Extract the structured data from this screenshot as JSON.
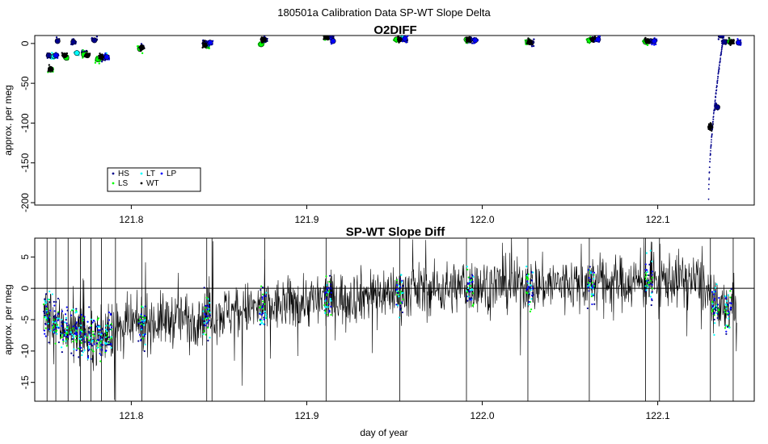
{
  "figure": {
    "title": "180501a   Calibration Data SP-WT Slope Delta",
    "xlabel": "day of year"
  },
  "chart_data": [
    {
      "type": "scatter",
      "title": "O2DIFF",
      "ylabel": "approx. per meg",
      "xlim": [
        121.745,
        122.155
      ],
      "ylim": [
        -203,
        10
      ],
      "xticks": [
        121.8,
        121.9,
        122.0,
        122.1
      ],
      "xtick_labels": [
        "121.8",
        "121.9",
        "122.0",
        "122.1"
      ],
      "yticks": [
        0,
        -50,
        -100,
        -150,
        -200
      ],
      "ytick_labels": [
        "0",
        "-50",
        "-100",
        "-150",
        "-200"
      ],
      "legend": {
        "placement": "bottom-left",
        "entries": [
          {
            "label": "HS",
            "color": "#00008b"
          },
          {
            "label": "LS",
            "color": "#00ff00"
          },
          {
            "label": "LT",
            "color": "#00ffff"
          },
          {
            "label": "WT",
            "color": "#000000"
          },
          {
            "label": "LP",
            "color": "#0000ff"
          }
        ]
      },
      "series": [
        {
          "name": "HS",
          "color": "#00008b",
          "x": [
            121.753,
            121.758,
            121.767,
            121.773,
            121.779,
            121.784,
            121.806,
            121.842,
            121.876,
            121.914,
            121.956,
            121.993,
            122.028,
            122.064,
            122.096,
            122.134,
            122.136,
            122.138
          ],
          "y": [
            -15,
            3,
            2,
            -12,
            4,
            -18,
            -5,
            1,
            4,
            7,
            5,
            5,
            1,
            5,
            3,
            -80,
            10,
            2
          ]
        },
        {
          "name": "LS",
          "color": "#00ff00",
          "x": [
            121.754,
            121.763,
            121.773,
            121.781,
            121.805,
            121.843,
            121.874,
            121.911,
            121.951,
            121.991,
            122.026,
            122.061,
            122.093,
            122.141
          ],
          "y": [
            -33,
            -18,
            -14,
            -20,
            -7,
            -3,
            -1,
            8,
            5,
            5,
            2,
            4,
            2,
            2
          ]
        },
        {
          "name": "LT",
          "color": "#00ffff",
          "x": [
            121.756,
            121.769,
            121.785,
            121.955
          ],
          "y": [
            -16,
            -12,
            -17,
            7
          ]
        },
        {
          "name": "WT",
          "color": "#000000",
          "x": [
            121.754,
            121.762,
            121.775,
            121.783,
            121.806,
            121.842,
            121.875,
            121.911,
            121.953,
            121.992,
            122.027,
            122.063,
            122.094,
            122.13,
            122.142
          ],
          "y": [
            -32,
            -15,
            -15,
            -17,
            -5,
            -2,
            5,
            8,
            5,
            5,
            2,
            5,
            3,
            -105,
            2
          ]
        },
        {
          "name": "LP",
          "color": "#0000ff",
          "x": [
            121.757,
            121.786,
            121.845,
            121.915,
            121.956,
            121.996,
            122.066,
            122.098,
            122.146
          ],
          "y": [
            -15,
            -17,
            1,
            3,
            6,
            4,
            5,
            3,
            1
          ]
        }
      ]
    },
    {
      "type": "line",
      "title": "SP-WT Slope Diff",
      "ylabel": "approx. per meg",
      "xlim": [
        121.745,
        122.155
      ],
      "ylim": [
        -18,
        8
      ],
      "hline": 0,
      "xticks": [
        121.8,
        121.9,
        122.0,
        122.1
      ],
      "xtick_labels": [
        "121.8",
        "121.9",
        "122.0",
        "122.1"
      ],
      "yticks": [
        5,
        0,
        -5,
        -10,
        -15
      ],
      "ytick_labels": [
        "5",
        "0",
        "-5",
        "-10",
        "-15"
      ],
      "series": [
        {
          "name": "SP-WT",
          "color": "#000000",
          "x": [
            121.75,
            121.76,
            121.77,
            121.78,
            121.79,
            121.8,
            121.82,
            121.84,
            121.86,
            121.88,
            121.9,
            121.92,
            121.95,
            121.98,
            122.0,
            122.03,
            122.06,
            122.09,
            122.11,
            122.125,
            122.135,
            122.145
          ],
          "y": [
            -4,
            -6,
            -7,
            -8,
            -7,
            -6,
            -5,
            -4.5,
            -3.5,
            -3,
            -2,
            -1.5,
            -0.5,
            0,
            0.5,
            0.5,
            1,
            1,
            1.5,
            1,
            -4,
            -2
          ]
        }
      ]
    }
  ]
}
